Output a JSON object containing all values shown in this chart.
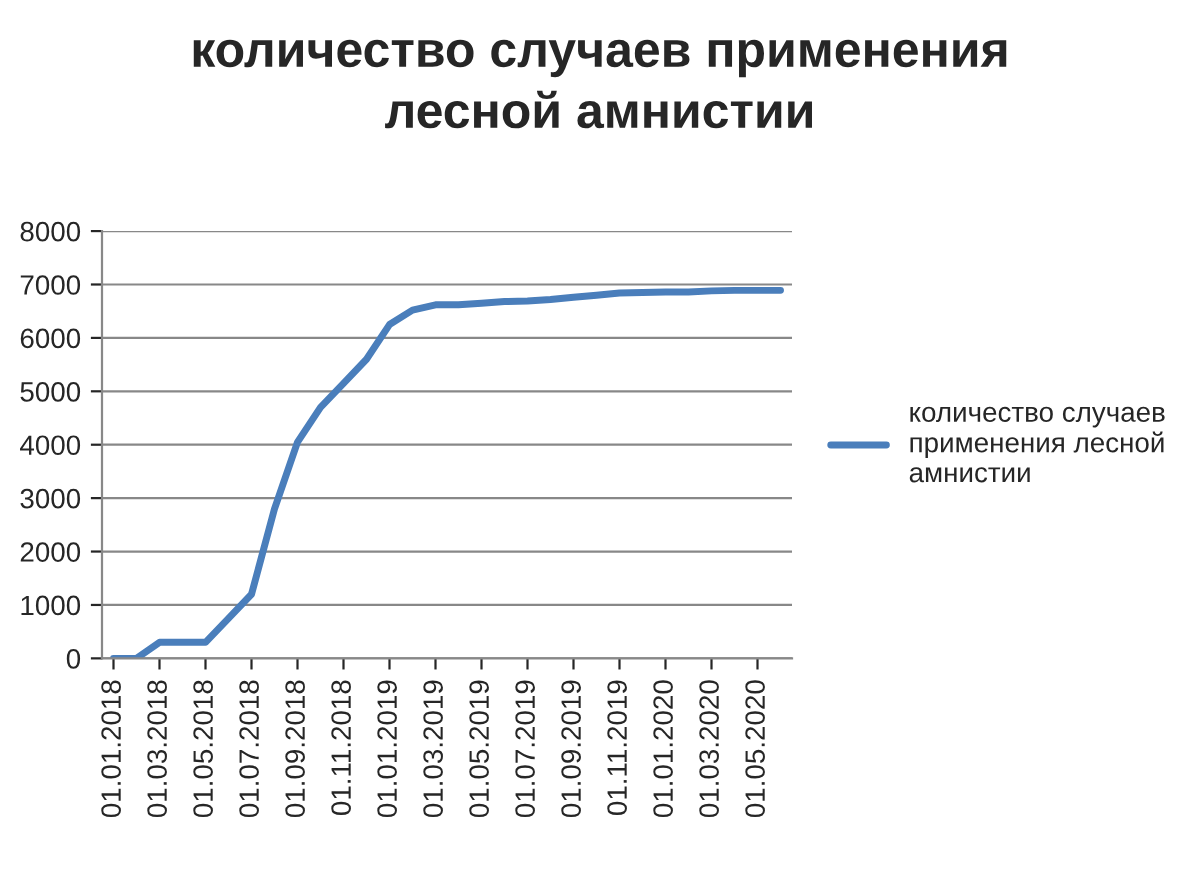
{
  "chart_data": {
    "type": "line",
    "title": "количество случаев применения лесной амнистии",
    "categories": [
      "01.01.2018",
      null,
      "01.03.2018",
      null,
      "01.05.2018",
      null,
      "01.07.2018",
      null,
      "01.09.2018",
      null,
      "01.11.2018",
      null,
      "01.01.2019",
      null,
      "01.03.2019",
      null,
      "01.05.2019",
      null,
      "01.07.2019",
      null,
      "01.09.2019",
      null,
      "01.11.2019",
      null,
      "01.01.2020",
      null,
      "01.03.2020",
      null,
      "01.05.2020",
      null
    ],
    "series": [
      {
        "name": "количество случаев применения лесной амнистии",
        "color": "#4a7ebb",
        "values": [
          0,
          0,
          300,
          300,
          300,
          750,
          1200,
          2800,
          4050,
          4700,
          5150,
          5600,
          6250,
          6520,
          6620,
          6620,
          6650,
          6680,
          6690,
          6720,
          6760,
          6800,
          6840,
          6850,
          6860,
          6860,
          6880,
          6890,
          6890,
          6890
        ]
      }
    ],
    "ylim": [
      0,
      8000
    ],
    "yticks": [
      0,
      1000,
      2000,
      3000,
      4000,
      5000,
      6000,
      7000,
      8000
    ],
    "grid": "y",
    "legend": "right",
    "marker": "none",
    "line_style": "solid"
  }
}
